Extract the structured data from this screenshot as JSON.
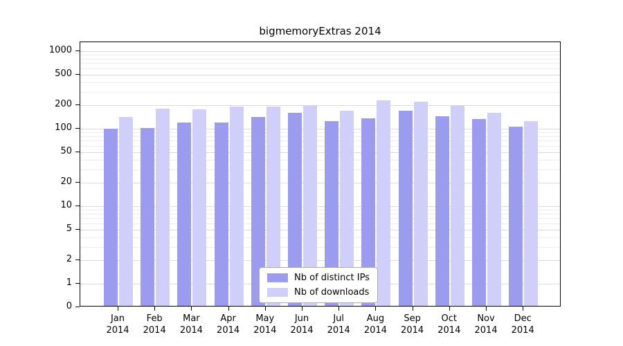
{
  "chart_data": {
    "type": "bar",
    "title": "bigmemoryExtras 2014",
    "categories": [
      "Jan",
      "Feb",
      "Mar",
      "Apr",
      "May",
      "Jun",
      "Jul",
      "Aug",
      "Sep",
      "Oct",
      "Nov",
      "Dec"
    ],
    "year": "2014",
    "series": [
      {
        "name": "Nb of distinct IPs",
        "color": "#9b9bef",
        "values": [
          95,
          98,
          115,
          115,
          135,
          155,
          120,
          130,
          165,
          140,
          127,
          102
        ]
      },
      {
        "name": "Nb of downloads",
        "color": "#cfcff9",
        "values": [
          135,
          175,
          170,
          185,
          185,
          195,
          165,
          225,
          215,
          195,
          155,
          120
        ]
      }
    ],
    "y_ticks": [
      0,
      1,
      2,
      5,
      10,
      20,
      50,
      100,
      200,
      500,
      1000
    ],
    "ylim": [
      0,
      1000
    ],
    "y_scale": "log",
    "grid": true,
    "legend_position": "bottom-center-inside"
  }
}
